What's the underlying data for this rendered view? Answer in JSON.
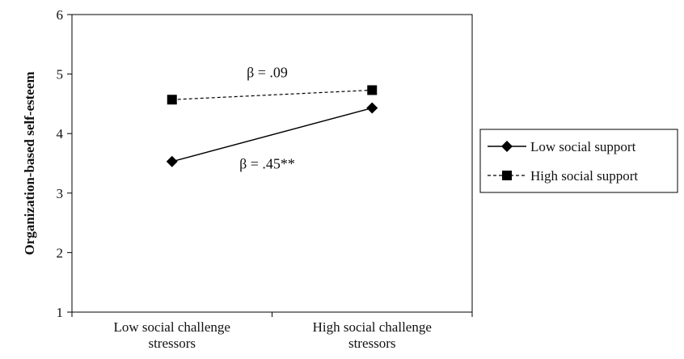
{
  "chart_data": {
    "type": "line",
    "title": "",
    "xlabel": "",
    "ylabel": "Organization-based self-esteem",
    "categories": [
      "Low social challenge stressors",
      "High social challenge stressors"
    ],
    "category_lines": [
      [
        "Low social challenge",
        "stressors"
      ],
      [
        "High social challenge",
        "stressors"
      ]
    ],
    "ylim": [
      1,
      6
    ],
    "yticks": [
      "1",
      "2",
      "3",
      "4",
      "5",
      "6"
    ],
    "grid": false,
    "legend_position": "right",
    "series": [
      {
        "name": "Low social support",
        "values": [
          3.53,
          4.43
        ],
        "line_style": "solid",
        "marker": "diamond",
        "color": "#000000"
      },
      {
        "name": "High social support",
        "values": [
          4.57,
          4.73
        ],
        "line_style": "dashed",
        "marker": "square",
        "color": "#000000"
      }
    ],
    "annotations": [
      {
        "text": "β = .09",
        "series": "High social support"
      },
      {
        "text": "β = .45**",
        "series": "Low social support"
      }
    ]
  }
}
